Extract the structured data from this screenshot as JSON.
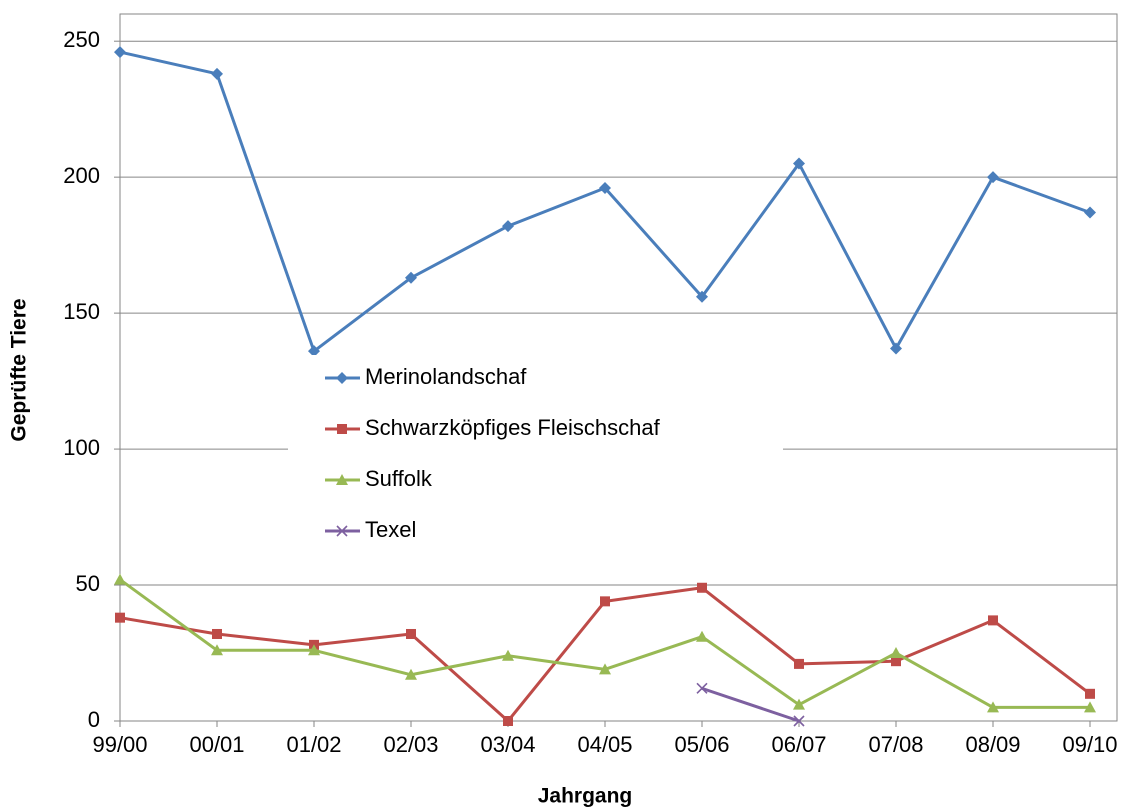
{
  "chart_data": {
    "type": "line",
    "x_label": "Jahrgang",
    "y_label": "Geprüfte Tiere",
    "categories": [
      "99/00",
      "00/01",
      "01/02",
      "02/03",
      "03/04",
      "04/05",
      "05/06",
      "06/07",
      "07/08",
      "08/09",
      "09/10"
    ],
    "series": [
      {
        "name": "Merinolandschaf",
        "color": "#4a7ebb",
        "marker": "diamond",
        "values": [
          246,
          238,
          136,
          163,
          182,
          196,
          156,
          205,
          137,
          200,
          187
        ]
      },
      {
        "name": "Schwarzköpfiges Fleischschaf",
        "color": "#be4b48",
        "marker": "square",
        "values": [
          38,
          32,
          28,
          32,
          0,
          44,
          49,
          21,
          22,
          37,
          10
        ]
      },
      {
        "name": "Suffolk",
        "color": "#98b954",
        "marker": "triangle",
        "values": [
          52,
          26,
          26,
          17,
          24,
          19,
          31,
          6,
          25,
          5,
          5
        ]
      },
      {
        "name": "Texel",
        "color": "#7d60a0",
        "marker": "x",
        "values": [
          null,
          null,
          null,
          null,
          null,
          null,
          12,
          0,
          null,
          null,
          null
        ]
      }
    ],
    "ylim": [
      0,
      260
    ],
    "yticks": [
      0,
      50,
      100,
      150,
      200,
      250
    ],
    "grid": true
  }
}
